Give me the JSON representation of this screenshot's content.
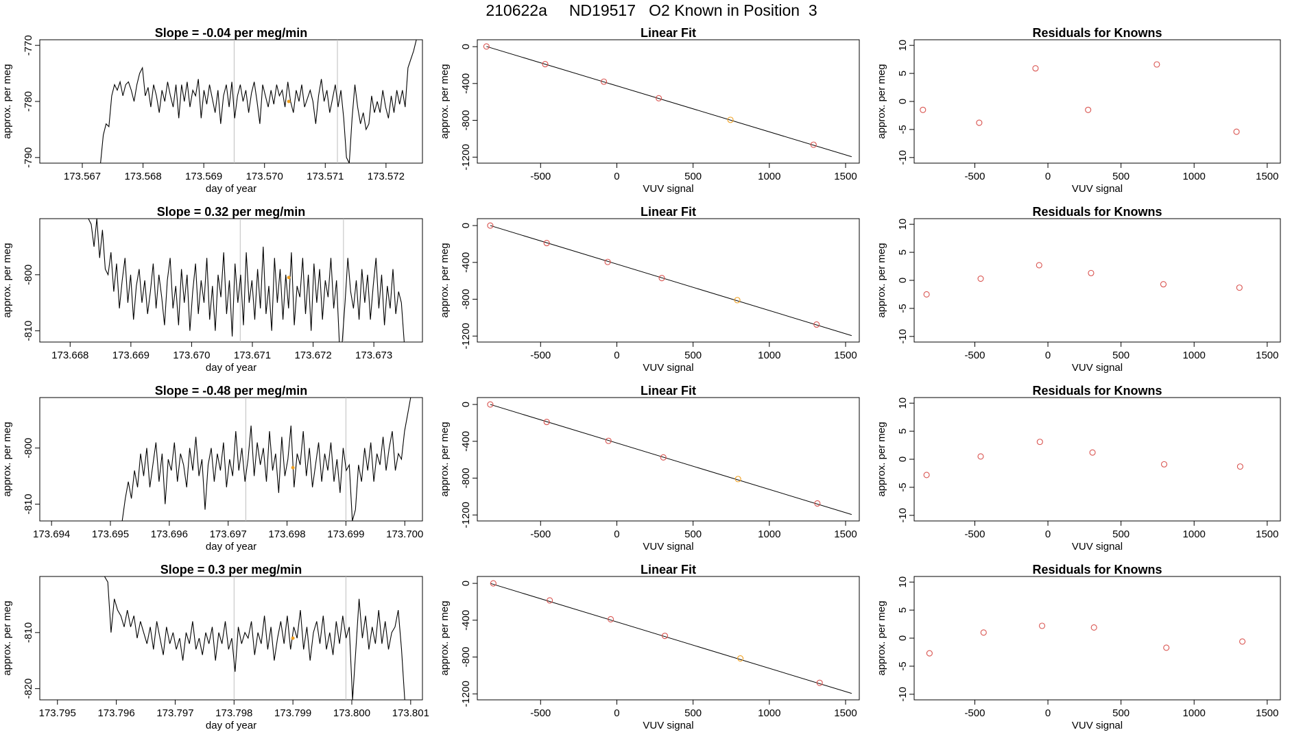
{
  "figure_title": "210622a     ND19517   O2 Known in Position  3",
  "colors": {
    "line": "#000000",
    "guide": "#bebebe",
    "known_point": "#d9534f",
    "highlight_point": "#f0a020"
  },
  "chart_data": [
    {
      "type": "line",
      "row": 0,
      "col": 0,
      "title": "Slope =  -0.04  per meg/min",
      "xlabel": "day of year",
      "ylabel": "approx. per meg",
      "xlim": [
        173.5663,
        173.5726
      ],
      "ylim": [
        -791,
        -769
      ],
      "xticks": [
        "173.567",
        "173.568",
        "173.569",
        "173.570",
        "173.571",
        "173.572"
      ],
      "xtick_values": [
        173.567,
        173.568,
        173.569,
        173.57,
        173.571,
        173.572
      ],
      "yticks": [
        "-790",
        "-780",
        "-770"
      ],
      "ytick_values": [
        -790,
        -780,
        -770
      ],
      "vlines": [
        173.5695,
        173.5712
      ],
      "highlight": {
        "x": 173.5704,
        "y": -780
      },
      "series": [
        {
          "name": "signal",
          "x_start": 173.5673,
          "x_end": 173.5725,
          "values": [
            -791,
            -786,
            -784,
            -784.5,
            -779,
            -777,
            -778,
            -776.5,
            -779,
            -777,
            -776.5,
            -778,
            -780,
            -777,
            -775,
            -774,
            -779,
            -777.5,
            -781,
            -777,
            -779,
            -782,
            -778,
            -780,
            -776.5,
            -779,
            -781,
            -777,
            -783,
            -777,
            -780,
            -776.5,
            -781,
            -778,
            -779,
            -776,
            -783,
            -778,
            -780.5,
            -777,
            -779.5,
            -782,
            -778,
            -784,
            -779,
            -777,
            -781,
            -776.5,
            -783,
            -779,
            -777,
            -780,
            -778,
            -782,
            -778.5,
            -776.5,
            -780,
            -784,
            -777,
            -779,
            -781,
            -778,
            -780.5,
            -777,
            -779,
            -778,
            -781,
            -776.5,
            -780,
            -782,
            -778,
            -780,
            -777,
            -781,
            -779.5,
            -778,
            -780,
            -784,
            -779,
            -776,
            -780,
            -778,
            -782,
            -779.5,
            -777,
            -781,
            -778,
            -783,
            -790,
            -791,
            -783,
            -777,
            -781,
            -784,
            -782,
            -785,
            -784,
            -779,
            -782,
            -780,
            -782,
            -778,
            -781,
            -783,
            -779,
            -782,
            -778,
            -780.5,
            -778,
            -781,
            -774,
            -772.5,
            -771,
            -769
          ]
        }
      ]
    },
    {
      "type": "scatter",
      "row": 0,
      "col": 1,
      "title": "Linear Fit",
      "xlabel": "VUV signal",
      "ylabel": "approx. per meg",
      "xlim": [
        -915,
        1590
      ],
      "ylim": [
        -1265,
        75
      ],
      "xticks": [
        "-500",
        "0",
        "500",
        "1000",
        "1500"
      ],
      "xtick_values": [
        -500,
        0,
        500,
        1000,
        1500
      ],
      "yticks": [
        "0",
        "-400",
        "-800",
        "-1200"
      ],
      "ytick_values": [
        0,
        -400,
        -800,
        -1200
      ],
      "fit_line": [
        [
          -855,
          2
        ],
        [
          1540,
          -1195
        ]
      ],
      "points": {
        "x": [
          -855,
          -470,
          -85,
          275,
          745,
          1290
        ],
        "y": [
          2,
          -190,
          -380,
          -560,
          -795,
          -1065
        ]
      },
      "highlight_index": 4
    },
    {
      "type": "scatter",
      "row": 0,
      "col": 2,
      "title": "Residuals for Knowns",
      "xlabel": "VUV signal",
      "ylabel": "approx. per meg",
      "xlim": [
        -915,
        1590
      ],
      "ylim": [
        -11,
        11
      ],
      "xticks": [
        "-500",
        "0",
        "500",
        "1000",
        "1500"
      ],
      "xtick_values": [
        -500,
        0,
        500,
        1000,
        1500
      ],
      "yticks": [
        "-10",
        "-5",
        "0",
        "5",
        "10"
      ],
      "ytick_values": [
        -10,
        -5,
        0,
        5,
        10
      ],
      "points": {
        "x": [
          -855,
          -470,
          -85,
          275,
          745,
          1290
        ],
        "y": [
          -1.5,
          -3.8,
          5.9,
          -1.5,
          6.6,
          -5.4
        ]
      }
    },
    {
      "type": "line",
      "row": 1,
      "col": 0,
      "title": "Slope =  0.32  per meg/min",
      "xlabel": "day of year",
      "ylabel": "approx. per meg",
      "xlim": [
        173.6675,
        173.6738
      ],
      "ylim": [
        -812,
        -790
      ],
      "xticks": [
        "173.668",
        "173.669",
        "173.670",
        "173.671",
        "173.672",
        "173.673"
      ],
      "xtick_values": [
        173.668,
        173.669,
        173.67,
        173.671,
        173.672,
        173.673
      ],
      "yticks": [
        "-810",
        "-800"
      ],
      "ytick_values": [
        -810,
        -800
      ],
      "vlines": [
        173.6708,
        173.6725
      ],
      "highlight": {
        "x": 173.6716,
        "y": -800.5
      },
      "series": [
        {
          "name": "signal",
          "x_start": 173.6683,
          "x_end": 173.6735,
          "values": [
            -790,
            -791,
            -795,
            -790,
            -797,
            -792,
            -799,
            -800,
            -796,
            -803,
            -798,
            -806,
            -801,
            -797,
            -805,
            -800,
            -808,
            -802,
            -799,
            -805,
            -801,
            -807,
            -803,
            -798,
            -806,
            -800,
            -804,
            -809,
            -801,
            -797,
            -806,
            -802,
            -809,
            -799,
            -805,
            -800,
            -810,
            -803,
            -798,
            -807,
            -801,
            -805,
            -797,
            -808,
            -802,
            -810,
            -800,
            -804,
            -796,
            -807,
            -801,
            -811,
            -798,
            -805,
            -800,
            -809,
            -796,
            -805,
            -801,
            -808,
            -799,
            -806,
            -795,
            -807,
            -802,
            -810,
            -797,
            -805,
            -799,
            -808,
            -800,
            -806,
            -796,
            -809,
            -802,
            -804,
            -797,
            -807,
            -800,
            -810,
            -798,
            -805,
            -799,
            -808,
            -801,
            -804,
            -797,
            -806,
            -801,
            -812,
            -812,
            -805,
            -797,
            -803,
            -806,
            -801,
            -808,
            -799,
            -805,
            -800,
            -808,
            -802,
            -797,
            -806,
            -800,
            -809,
            -802,
            -806,
            -799,
            -807,
            -803,
            -805,
            -812
          ]
        }
      ]
    },
    {
      "type": "scatter",
      "row": 1,
      "col": 1,
      "title": "Linear Fit",
      "xlabel": "VUV signal",
      "ylabel": "approx. per meg",
      "xlim": [
        -915,
        1590
      ],
      "ylim": [
        -1265,
        75
      ],
      "xticks": [
        "-500",
        "0",
        "500",
        "1000",
        "1500"
      ],
      "xtick_values": [
        -500,
        0,
        500,
        1000,
        1500
      ],
      "yticks": [
        "0",
        "-400",
        "-800",
        "-1200"
      ],
      "ytick_values": [
        0,
        -400,
        -800,
        -1200
      ],
      "fit_line": [
        [
          -830,
          0
        ],
        [
          1540,
          -1195
        ]
      ],
      "points": {
        "x": [
          -830,
          -460,
          -60,
          295,
          790,
          1310
        ],
        "y": [
          0,
          -190,
          -395,
          -570,
          -810,
          -1075
        ]
      },
      "highlight_index": 4
    },
    {
      "type": "scatter",
      "row": 1,
      "col": 2,
      "title": "Residuals for Knowns",
      "xlabel": "VUV signal",
      "ylabel": "approx. per meg",
      "xlim": [
        -915,
        1590
      ],
      "ylim": [
        -11,
        11
      ],
      "xticks": [
        "-500",
        "0",
        "500",
        "1000",
        "1500"
      ],
      "xtick_values": [
        -500,
        0,
        500,
        1000,
        1500
      ],
      "yticks": [
        "-10",
        "-5",
        "0",
        "5",
        "10"
      ],
      "ytick_values": [
        -10,
        -5,
        0,
        5,
        10
      ],
      "points": {
        "x": [
          -830,
          -460,
          -60,
          295,
          790,
          1310
        ],
        "y": [
          -2.5,
          0.3,
          2.7,
          1.3,
          -0.7,
          -1.3
        ]
      }
    },
    {
      "type": "line",
      "row": 2,
      "col": 0,
      "title": "Slope =  -0.48  per meg/min",
      "xlabel": "day of year",
      "ylabel": "approx. per meg",
      "xlim": [
        173.6938,
        173.7003
      ],
      "ylim": [
        -813,
        -791
      ],
      "xticks": [
        "173.694",
        "173.695",
        "173.696",
        "173.697",
        "173.698",
        "173.699",
        "173.700"
      ],
      "xtick_values": [
        173.694,
        173.695,
        173.696,
        173.697,
        173.698,
        173.699,
        173.7
      ],
      "yticks": [
        "-810",
        "-800"
      ],
      "ytick_values": [
        -810,
        -800
      ],
      "vlines": [
        173.6973,
        173.699
      ],
      "highlight": {
        "x": 173.6981,
        "y": -803.5
      },
      "series": [
        {
          "name": "signal",
          "x_start": 173.6952,
          "x_end": 173.7001,
          "values": [
            -813,
            -809,
            -806,
            -809,
            -804,
            -807,
            -801,
            -805,
            -800,
            -807,
            -803,
            -799,
            -806,
            -801,
            -810,
            -802,
            -804,
            -799,
            -806,
            -801,
            -803,
            -807,
            -800,
            -804,
            -798,
            -805,
            -802,
            -811,
            -803,
            -800,
            -806,
            -801,
            -804,
            -799,
            -807,
            -802,
            -805,
            -797,
            -804,
            -800,
            -806,
            -802,
            -796,
            -805,
            -799,
            -803,
            -800,
            -806,
            -797,
            -804,
            -801,
            -808,
            -798,
            -805,
            -802,
            -796,
            -807,
            -801,
            -803,
            -797,
            -805,
            -800,
            -807,
            -803,
            -799,
            -806,
            -801,
            -804,
            -799,
            -806,
            -802,
            -808,
            -800,
            -804,
            -803,
            -813,
            -811,
            -803,
            -806,
            -800,
            -804,
            -799,
            -806,
            -801,
            -803,
            -798,
            -804,
            -800,
            -797,
            -804,
            -801,
            -802,
            -797,
            -794,
            -791
          ]
        }
      ]
    },
    {
      "type": "scatter",
      "row": 2,
      "col": 1,
      "title": "Linear Fit",
      "xlabel": "VUV signal",
      "ylabel": "approx. per meg",
      "xlim": [
        -915,
        1590
      ],
      "ylim": [
        -1265,
        75
      ],
      "xticks": [
        "-500",
        "0",
        "500",
        "1000",
        "1500"
      ],
      "xtick_values": [
        -500,
        0,
        500,
        1000,
        1500
      ],
      "yticks": [
        "0",
        "-400",
        "-800",
        "-1200"
      ],
      "ytick_values": [
        0,
        -400,
        -800,
        -1200
      ],
      "fit_line": [
        [
          -830,
          0
        ],
        [
          1540,
          -1195
        ]
      ],
      "points": {
        "x": [
          -830,
          -460,
          -55,
          305,
          795,
          1315
        ],
        "y": [
          0,
          -190,
          -395,
          -575,
          -810,
          -1075
        ]
      },
      "highlight_index": 4
    },
    {
      "type": "scatter",
      "row": 2,
      "col": 2,
      "title": "Residuals for Knowns",
      "xlabel": "VUV signal",
      "ylabel": "approx. per meg",
      "xlim": [
        -915,
        1590
      ],
      "ylim": [
        -11,
        11
      ],
      "xticks": [
        "-500",
        "0",
        "500",
        "1000",
        "1500"
      ],
      "xtick_values": [
        -500,
        0,
        500,
        1000,
        1500
      ],
      "yticks": [
        "-10",
        "-5",
        "0",
        "5",
        "10"
      ],
      "ytick_values": [
        -10,
        -5,
        0,
        5,
        10
      ],
      "points": {
        "x": [
          -830,
          -460,
          -55,
          305,
          795,
          1315
        ],
        "y": [
          -2.8,
          0.5,
          3.1,
          1.2,
          -0.9,
          -1.3
        ]
      }
    },
    {
      "type": "line",
      "row": 3,
      "col": 0,
      "title": "Slope =  0.3  per meg/min",
      "xlabel": "day of year",
      "ylabel": "approx. per meg",
      "xlim": [
        173.7947,
        173.8012
      ],
      "ylim": [
        -822,
        -800
      ],
      "xticks": [
        "173.795",
        "173.796",
        "173.797",
        "173.798",
        "173.799",
        "173.800",
        "173.801"
      ],
      "xtick_values": [
        173.795,
        173.796,
        173.797,
        173.798,
        173.799,
        173.8,
        173.801
      ],
      "yticks": [
        "-820",
        "-810"
      ],
      "ytick_values": [
        -820,
        -810
      ],
      "vlines": [
        173.798,
        173.7999
      ],
      "highlight": {
        "x": 173.799,
        "y": -811
      },
      "series": [
        {
          "name": "signal",
          "x_start": 173.7958,
          "x_end": 173.8009,
          "values": [
            -800,
            -801,
            -810,
            -804,
            -806,
            -807,
            -809,
            -806,
            -809,
            -807,
            -811,
            -808,
            -810,
            -812,
            -809,
            -813,
            -808,
            -811,
            -814,
            -809,
            -812,
            -810,
            -813,
            -811,
            -815,
            -810,
            -812,
            -808,
            -813,
            -811,
            -814,
            -810,
            -812,
            -809,
            -815,
            -810,
            -812,
            -808,
            -813,
            -811,
            -817,
            -809,
            -812,
            -810,
            -811,
            -808,
            -814,
            -810,
            -812,
            -807,
            -813,
            -809,
            -815,
            -811,
            -808,
            -812,
            -807,
            -813,
            -809,
            -811,
            -806,
            -813,
            -809,
            -815,
            -810,
            -808,
            -812,
            -807,
            -813,
            -810,
            -814,
            -808,
            -812,
            -807,
            -811,
            -809,
            -822,
            -813,
            -804,
            -811,
            -807,
            -813,
            -809,
            -812,
            -806,
            -812,
            -808,
            -813,
            -810,
            -809,
            -806,
            -813,
            -822
          ]
        }
      ]
    },
    {
      "type": "scatter",
      "row": 3,
      "col": 1,
      "title": "Linear Fit",
      "xlabel": "VUV signal",
      "ylabel": "approx. per meg",
      "xlim": [
        -915,
        1590
      ],
      "ylim": [
        -1265,
        75
      ],
      "xticks": [
        "-500",
        "0",
        "500",
        "1000",
        "1500"
      ],
      "xtick_values": [
        -500,
        0,
        500,
        1000,
        1500
      ],
      "yticks": [
        "0",
        "-400",
        "-800",
        "-1200"
      ],
      "ytick_values": [
        0,
        -400,
        -800,
        -1200
      ],
      "fit_line": [
        [
          -830,
          0
        ],
        [
          1540,
          -1195
        ]
      ],
      "points": {
        "x": [
          -810,
          -440,
          -40,
          315,
          810,
          1330
        ],
        "y": [
          0,
          -185,
          -390,
          -570,
          -815,
          -1080
        ]
      },
      "highlight_index": 4
    },
    {
      "type": "scatter",
      "row": 3,
      "col": 2,
      "title": "Residuals for Knowns",
      "xlabel": "VUV signal",
      "ylabel": "approx. per meg",
      "xlim": [
        -915,
        1590
      ],
      "ylim": [
        -11,
        11
      ],
      "xticks": [
        "-500",
        "0",
        "500",
        "1000",
        "1500"
      ],
      "xtick_values": [
        -500,
        0,
        500,
        1000,
        1500
      ],
      "yticks": [
        "-10",
        "-5",
        "0",
        "5",
        "10"
      ],
      "ytick_values": [
        -10,
        -5,
        0,
        5,
        10
      ],
      "points": {
        "x": [
          -810,
          -440,
          -40,
          315,
          810,
          1330
        ],
        "y": [
          -2.7,
          1.0,
          2.2,
          1.9,
          -1.7,
          -0.6
        ]
      }
    }
  ]
}
